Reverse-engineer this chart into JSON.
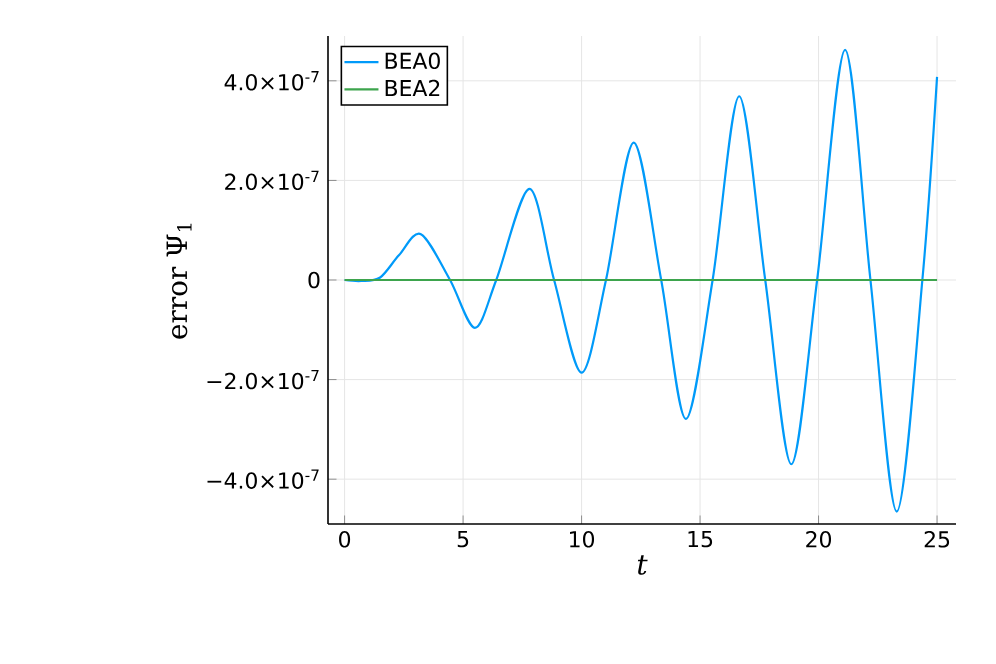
{
  "chart_data": {
    "type": "line",
    "xlabel": "t",
    "ylabel": "error Ψ$_{1}$",
    "xlim": [
      -0.7,
      25.8
    ],
    "ylim": [
      -4.9e-07,
      4.9e-07
    ],
    "xticks": [
      0,
      5,
      10,
      15,
      20,
      25
    ],
    "yticks": [
      {
        "value": -4e-07,
        "label": "−4.0×10$^{-7}$"
      },
      {
        "value": -2e-07,
        "label": "−2.0×10$^{-7}$"
      },
      {
        "value": 0,
        "label": "0"
      },
      {
        "value": 2e-07,
        "label": "2.0×10$^{-7}$"
      },
      {
        "value": 4e-07,
        "label": "4.0×10$^{-7}$"
      }
    ],
    "grid": true,
    "legend": "top left",
    "series": [
      {
        "name": "BEA0",
        "color": "#009af9",
        "x": [
          0,
          0.7,
          1.5,
          2.3,
          3.22,
          4.45,
          5.5,
          6.4,
          7.8,
          8.84,
          10.0,
          11.03,
          12.2,
          13.36,
          14.4,
          15.53,
          16.65,
          17.75,
          18.85,
          19.94,
          21.12,
          22.19,
          23.3,
          24.38,
          25.0
        ],
        "values": [
          0,
          -2e-09,
          5e-09,
          5e-08,
          9.2e-08,
          0,
          -9.6e-08,
          0,
          1.83e-07,
          0,
          -1.86e-07,
          0,
          2.76e-07,
          0,
          -2.79e-07,
          0,
          3.69e-07,
          0,
          -3.7e-07,
          0,
          4.62e-07,
          0,
          -4.65e-07,
          0,
          4.08e-07
        ]
      },
      {
        "name": "BEA2",
        "color": "#3da44d",
        "x": [
          0,
          25
        ],
        "values": [
          0,
          0
        ]
      }
    ]
  }
}
